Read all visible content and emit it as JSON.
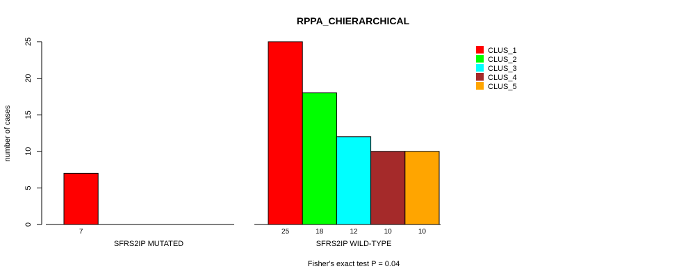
{
  "chart_data": {
    "type": "bar",
    "title": "RPPA_CHIERARCHICAL",
    "ylabel": "number of cases",
    "ylim": [
      0,
      25
    ],
    "yticks": [
      0,
      5,
      10,
      15,
      20,
      25
    ],
    "footer": "Fisher's exact test P = 0.04",
    "legend_position": "top-right",
    "series": [
      {
        "name": "CLUS_1",
        "color": "#FF0000"
      },
      {
        "name": "CLUS_2",
        "color": "#00FF00"
      },
      {
        "name": "CLUS_3",
        "color": "#00FFFF"
      },
      {
        "name": "CLUS_4",
        "color": "#A52A2A"
      },
      {
        "name": "CLUS_5",
        "color": "#FFA500"
      }
    ],
    "panels": [
      {
        "xlabel": "SFRS2IP MUTATED",
        "values": [
          7,
          0,
          0,
          0,
          0
        ],
        "labels": [
          "7",
          "",
          "",
          "",
          ""
        ]
      },
      {
        "xlabel": "SFRS2IP WILD-TYPE",
        "values": [
          25,
          18,
          12,
          10,
          10
        ],
        "labels": [
          "25",
          "18",
          "12",
          "10",
          "10"
        ]
      }
    ]
  }
}
